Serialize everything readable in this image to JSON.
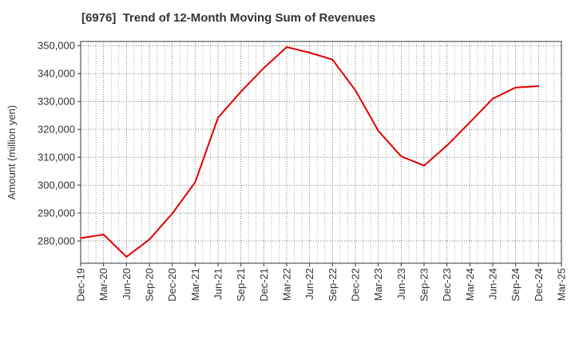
{
  "chart_data": {
    "type": "line",
    "title": "[6976]  Trend of 12-Month Moving Sum of Revenues",
    "xlabel": "",
    "ylabel": "Amount (million yen)",
    "ylim": [
      272000,
      351500
    ],
    "yticks": [
      280000,
      290000,
      300000,
      310000,
      320000,
      330000,
      340000,
      350000
    ],
    "ytick_labels": [
      "280,000",
      "290,000",
      "300,000",
      "310,000",
      "320,000",
      "330,000",
      "340,000",
      "350,000"
    ],
    "categories": [
      "Dec-19",
      "Mar-20",
      "Jun-20",
      "Sep-20",
      "Dec-20",
      "Mar-21",
      "Jun-21",
      "Sep-21",
      "Dec-21",
      "Mar-22",
      "Jun-22",
      "Sep-22",
      "Dec-22",
      "Mar-23",
      "Jun-23",
      "Sep-23",
      "Dec-23",
      "Mar-24",
      "Jun-24",
      "Sep-24",
      "Dec-24",
      "Mar-25"
    ],
    "grid": true,
    "series": [
      {
        "color": "#e00000",
        "values": [
          281000,
          282300,
          274300,
          280500,
          289800,
          301000,
          324200,
          333500,
          342000,
          349500,
          347500,
          345000,
          334000,
          319500,
          310300,
          307000,
          314200,
          322500,
          331000,
          335000,
          335500,
          null
        ]
      }
    ]
  }
}
